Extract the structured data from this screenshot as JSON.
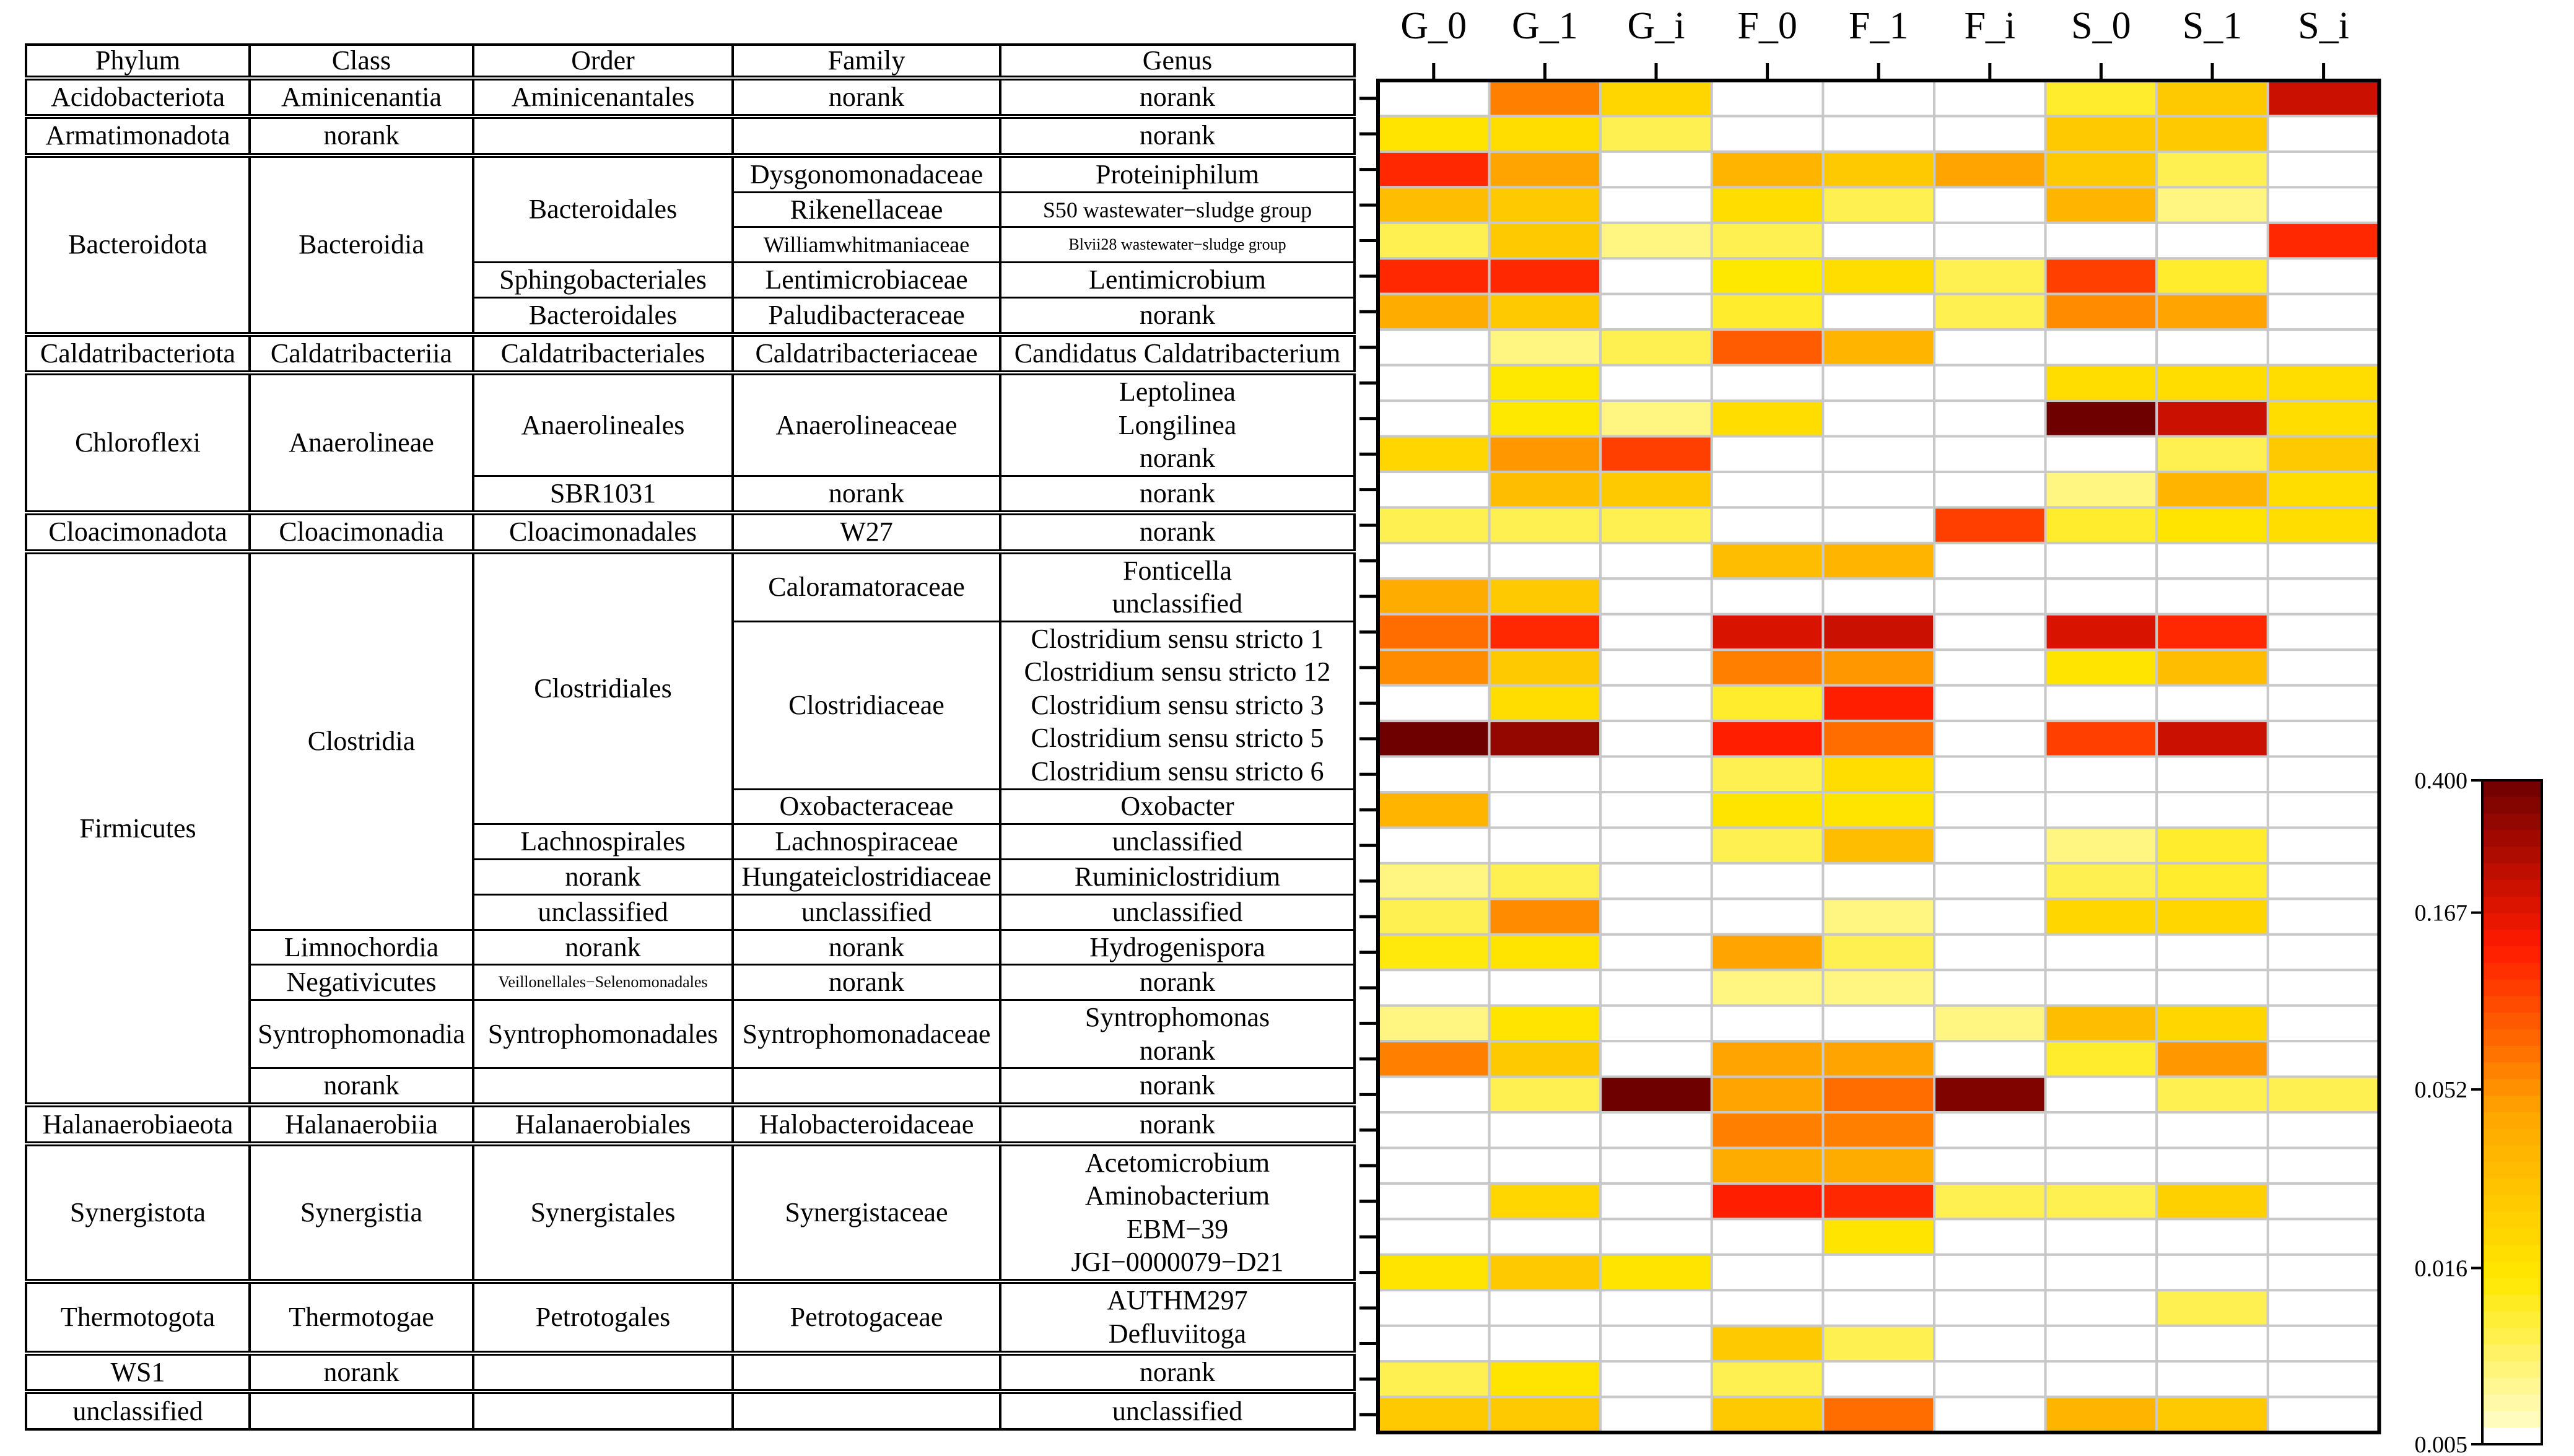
{
  "chart_data": {
    "type": "heatmap",
    "title": "",
    "columns": [
      "G_0",
      "G_1",
      "G_i",
      "F_0",
      "F_1",
      "F_i",
      "S_0",
      "S_1",
      "S_i"
    ],
    "table_headers": [
      "Phylum",
      "Class",
      "Order",
      "Family",
      "Genus"
    ],
    "rows": [
      {
        "phylum": "Acidobacteriota",
        "class": "Aminicenantia",
        "order": "Aminicenantales",
        "family": "norank",
        "genus": "norank",
        "values": [
          0.005,
          0.06,
          0.02,
          0.005,
          0.005,
          0.005,
          0.012,
          0.025,
          0.2
        ]
      },
      {
        "phylum": "Armatimonadota",
        "class": "norank",
        "order": "",
        "family": "",
        "genus": "norank",
        "values": [
          0.016,
          0.018,
          0.01,
          0.005,
          0.005,
          0.005,
          0.025,
          0.025,
          0.005
        ]
      },
      {
        "phylum": "Bacteroidota",
        "class": "Bacteroidia",
        "order": "Bacteroidales",
        "family": "Dysgonomonadaceae",
        "genus": "Proteiniphilum",
        "values": [
          0.12,
          0.045,
          0.005,
          0.035,
          0.025,
          0.045,
          0.025,
          0.01,
          0.005
        ]
      },
      {
        "phylum": "Bacteroidota",
        "class": "Bacteroidia",
        "order": "Bacteroidales",
        "family": "Rikenellaceae",
        "genus": "S50 wastewater−sludge group",
        "values": [
          0.03,
          0.025,
          0.005,
          0.018,
          0.01,
          0.005,
          0.035,
          0.008,
          0.005
        ]
      },
      {
        "phylum": "Bacteroidota",
        "class": "Bacteroidia",
        "order": "Bacteroidales",
        "family": "Williamwhitmaniaceae",
        "genus": "Blvii28 wastewater−sludge group",
        "values": [
          0.01,
          0.025,
          0.008,
          0.01,
          0.005,
          0.005,
          0.005,
          0.005,
          0.12
        ]
      },
      {
        "phylum": "Bacteroidota",
        "class": "Bacteroidia",
        "order": "Sphingobacteriales",
        "family": "Lentimicrobiaceae",
        "genus": "Lentimicrobium",
        "values": [
          0.12,
          0.12,
          0.005,
          0.015,
          0.018,
          0.01,
          0.1,
          0.012,
          0.005
        ]
      },
      {
        "phylum": "Bacteroidota",
        "class": "Bacteroidia",
        "order": "Bacteroidales",
        "family": "Paludibacteraceae",
        "genus": "norank",
        "values": [
          0.04,
          0.025,
          0.005,
          0.012,
          0.005,
          0.01,
          0.055,
          0.045,
          0.005
        ]
      },
      {
        "phylum": "Caldatribacteriota",
        "class": "Caldatribacteriia",
        "order": "Caldatribacteriales",
        "family": "Caldatribacteriaceae",
        "genus": "Candidatus Caldatribacterium",
        "values": [
          0.005,
          0.008,
          0.01,
          0.08,
          0.035,
          0.005,
          0.005,
          0.005,
          0.005
        ]
      },
      {
        "phylum": "Chloroflexi",
        "class": "Anaerolineae",
        "order": "Anaerolineales",
        "family": "Anaerolineaceae",
        "genus": "Leptolinea",
        "values": [
          0.005,
          0.015,
          0.005,
          0.005,
          0.005,
          0.005,
          0.018,
          0.018,
          0.018
        ]
      },
      {
        "phylum": "Chloroflexi",
        "class": "Anaerolineae",
        "order": "Anaerolineales",
        "family": "Anaerolineaceae",
        "genus": "Longilinea",
        "values": [
          0.005,
          0.015,
          0.008,
          0.018,
          0.005,
          0.005,
          0.4,
          0.2,
          0.018
        ]
      },
      {
        "phylum": "Chloroflexi",
        "class": "Anaerolineae",
        "order": "Anaerolineales",
        "family": "Anaerolineaceae",
        "genus": "norank",
        "values": [
          0.02,
          0.05,
          0.1,
          0.005,
          0.005,
          0.005,
          0.005,
          0.01,
          0.025
        ]
      },
      {
        "phylum": "Chloroflexi",
        "class": "Anaerolineae",
        "order": "SBR1031",
        "family": "norank",
        "genus": "norank",
        "values": [
          0.005,
          0.03,
          0.025,
          0.005,
          0.005,
          0.005,
          0.008,
          0.035,
          0.018
        ]
      },
      {
        "phylum": "Cloacimonadota",
        "class": "Cloacimonadia",
        "order": "Cloacimonadales",
        "family": "W27",
        "genus": "norank",
        "values": [
          0.01,
          0.01,
          0.01,
          0.005,
          0.005,
          0.1,
          0.012,
          0.016,
          0.018
        ]
      },
      {
        "phylum": "Firmicutes",
        "class": "Clostridia",
        "order": "Clostridiales",
        "family": "Caloramatoraceae",
        "genus": "Fonticella",
        "values": [
          0.005,
          0.005,
          0.005,
          0.03,
          0.035,
          0.005,
          0.005,
          0.005,
          0.005
        ]
      },
      {
        "phylum": "Firmicutes",
        "class": "Clostridia",
        "order": "Clostridiales",
        "family": "Caloramatoraceae",
        "genus": "unclassified",
        "values": [
          0.04,
          0.025,
          0.005,
          0.005,
          0.005,
          0.005,
          0.005,
          0.005,
          0.005
        ]
      },
      {
        "phylum": "Firmicutes",
        "class": "Clostridia",
        "order": "Clostridiales",
        "family": "Clostridiaceae",
        "genus": "Clostridium sensu stricto 1",
        "values": [
          0.07,
          0.12,
          0.005,
          0.18,
          0.2,
          0.005,
          0.18,
          0.12,
          0.005
        ]
      },
      {
        "phylum": "Firmicutes",
        "class": "Clostridia",
        "order": "Clostridiales",
        "family": "Clostridiaceae",
        "genus": "Clostridium sensu stricto 12",
        "values": [
          0.055,
          0.025,
          0.005,
          0.06,
          0.05,
          0.005,
          0.016,
          0.03,
          0.005
        ]
      },
      {
        "phylum": "Firmicutes",
        "class": "Clostridia",
        "order": "Clostridiales",
        "family": "Clostridiaceae",
        "genus": "Clostridium sensu stricto 3",
        "values": [
          0.005,
          0.018,
          0.005,
          0.012,
          0.13,
          0.005,
          0.005,
          0.005,
          0.005
        ]
      },
      {
        "phylum": "Firmicutes",
        "class": "Clostridia",
        "order": "Clostridiales",
        "family": "Clostridiaceae",
        "genus": "Clostridium sensu stricto 5",
        "values": [
          0.4,
          0.3,
          0.005,
          0.13,
          0.07,
          0.005,
          0.1,
          0.2,
          0.005
        ]
      },
      {
        "phylum": "Firmicutes",
        "class": "Clostridia",
        "order": "Clostridiales",
        "family": "Clostridiaceae",
        "genus": "Clostridium sensu stricto 6",
        "values": [
          0.005,
          0.005,
          0.005,
          0.01,
          0.018,
          0.005,
          0.005,
          0.005,
          0.005
        ]
      },
      {
        "phylum": "Firmicutes",
        "class": "Clostridia",
        "order": "Clostridiales",
        "family": "Oxobacteraceae",
        "genus": "Oxobacter",
        "values": [
          0.035,
          0.005,
          0.005,
          0.016,
          0.016,
          0.005,
          0.005,
          0.005,
          0.005
        ]
      },
      {
        "phylum": "Firmicutes",
        "class": "Clostridia",
        "order": "Lachnospirales",
        "family": "Lachnospiraceae",
        "genus": "unclassified",
        "values": [
          0.005,
          0.005,
          0.005,
          0.01,
          0.03,
          0.005,
          0.008,
          0.012,
          0.005
        ]
      },
      {
        "phylum": "Firmicutes",
        "class": "Clostridia",
        "order": "norank",
        "family": "Hungateiclostridiaceae",
        "genus": "Ruminiclostridium",
        "values": [
          0.008,
          0.01,
          0.005,
          0.005,
          0.005,
          0.005,
          0.01,
          0.012,
          0.005
        ]
      },
      {
        "phylum": "Firmicutes",
        "class": "Clostridia",
        "order": "unclassified",
        "family": "unclassified",
        "genus": "unclassified",
        "values": [
          0.01,
          0.055,
          0.005,
          0.005,
          0.008,
          0.005,
          0.02,
          0.02,
          0.005
        ]
      },
      {
        "phylum": "Firmicutes",
        "class": "Limnochordia",
        "order": "norank",
        "family": "norank",
        "genus": "Hydrogenispora",
        "values": [
          0.014,
          0.016,
          0.005,
          0.045,
          0.01,
          0.005,
          0.005,
          0.005,
          0.005
        ]
      },
      {
        "phylum": "Firmicutes",
        "class": "Negativicutes",
        "order": "Veillonellales−Selenomonadales",
        "family": "norank",
        "genus": "norank",
        "values": [
          0.005,
          0.005,
          0.005,
          0.008,
          0.008,
          0.005,
          0.005,
          0.005,
          0.005
        ]
      },
      {
        "phylum": "Firmicutes",
        "class": "Syntrophomonadia",
        "order": "Syntrophomonadales",
        "family": "Syntrophomonadaceae",
        "genus": "Syntrophomonas",
        "values": [
          0.008,
          0.016,
          0.005,
          0.005,
          0.005,
          0.008,
          0.03,
          0.02,
          0.005
        ]
      },
      {
        "phylum": "Firmicutes",
        "class": "Syntrophomonadia",
        "order": "Syntrophomonadales",
        "family": "Syntrophomonadaceae",
        "genus": "norank",
        "values": [
          0.06,
          0.025,
          0.005,
          0.045,
          0.045,
          0.005,
          0.012,
          0.05,
          0.005
        ]
      },
      {
        "phylum": "Firmicutes",
        "class": "norank",
        "order": "",
        "family": "",
        "genus": "norank",
        "values": [
          0.005,
          0.01,
          0.4,
          0.045,
          0.07,
          0.35,
          0.005,
          0.01,
          0.01
        ]
      },
      {
        "phylum": "Halanaerobiaeota",
        "class": "Halanaerobiia",
        "order": "Halanaerobiales",
        "family": "Halobacteroidaceae",
        "genus": "norank",
        "values": [
          0.005,
          0.005,
          0.005,
          0.06,
          0.06,
          0.005,
          0.005,
          0.005,
          0.005
        ]
      },
      {
        "phylum": "Synergistota",
        "class": "Synergistia",
        "order": "Synergistales",
        "family": "Synergistaceae",
        "genus": "Acetomicrobium",
        "values": [
          0.005,
          0.005,
          0.005,
          0.04,
          0.04,
          0.005,
          0.005,
          0.005,
          0.005
        ]
      },
      {
        "phylum": "Synergistota",
        "class": "Synergistia",
        "order": "Synergistales",
        "family": "Synergistaceae",
        "genus": "Aminobacterium",
        "values": [
          0.005,
          0.02,
          0.005,
          0.13,
          0.12,
          0.01,
          0.01,
          0.022,
          0.005
        ]
      },
      {
        "phylum": "Synergistota",
        "class": "Synergistia",
        "order": "Synergistales",
        "family": "Synergistaceae",
        "genus": "EBM−39",
        "values": [
          0.005,
          0.005,
          0.005,
          0.005,
          0.016,
          0.005,
          0.005,
          0.005,
          0.005
        ]
      },
      {
        "phylum": "Synergistota",
        "class": "Synergistia",
        "order": "Synergistales",
        "family": "Synergistaceae",
        "genus": "JGI−0000079−D21",
        "values": [
          0.016,
          0.025,
          0.016,
          0.005,
          0.005,
          0.005,
          0.005,
          0.005,
          0.005
        ]
      },
      {
        "phylum": "Thermotogota",
        "class": "Thermotogae",
        "order": "Petrotogales",
        "family": "Petrotogaceae",
        "genus": "AUTHM297",
        "values": [
          0.005,
          0.005,
          0.005,
          0.005,
          0.005,
          0.005,
          0.005,
          0.01,
          0.005
        ]
      },
      {
        "phylum": "Thermotogota",
        "class": "Thermotogae",
        "order": "Petrotogales",
        "family": "Petrotogaceae",
        "genus": "Defluviitoga",
        "values": [
          0.005,
          0.005,
          0.005,
          0.025,
          0.01,
          0.005,
          0.005,
          0.005,
          0.005
        ]
      },
      {
        "phylum": "WS1",
        "class": "norank",
        "order": "",
        "family": "",
        "genus": "norank",
        "values": [
          0.01,
          0.016,
          0.005,
          0.01,
          0.005,
          0.005,
          0.005,
          0.005,
          0.005
        ]
      },
      {
        "phylum": "unclassified",
        "class": "",
        "order": "",
        "family": "",
        "genus": "unclassified",
        "values": [
          0.025,
          0.025,
          0.005,
          0.025,
          0.07,
          0.005,
          0.035,
          0.025,
          0.005
        ]
      }
    ],
    "colorbar": {
      "ticks": [
        0.4,
        0.167,
        0.052,
        0.016,
        0.005
      ],
      "tick_labels": [
        "0.400",
        "0.167",
        "0.052",
        "0.016",
        "0.005"
      ],
      "range": [
        0.005,
        0.4
      ],
      "scale": "log"
    },
    "colors": {
      "low": "#ffffe0",
      "mid1": "#ffe800",
      "mid2": "#ffa500",
      "mid3": "#ff1a00",
      "high": "#6e0000",
      "grid": "#c8c8c8"
    }
  }
}
